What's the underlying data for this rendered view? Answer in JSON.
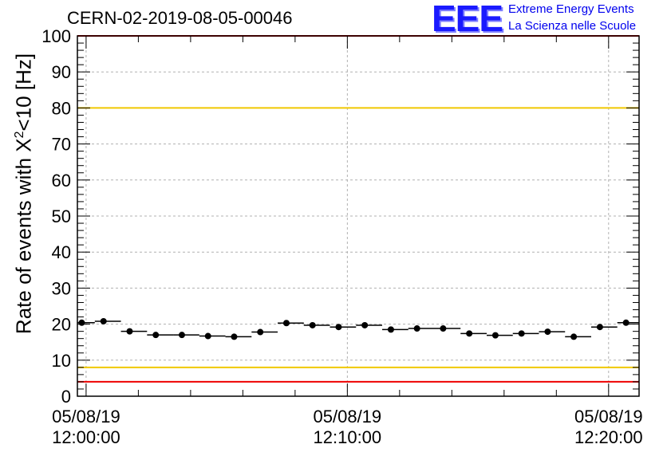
{
  "title": "CERN-02-2019-08-05-00046",
  "logo": {
    "mark": "EEE",
    "line1": "Extreme Energy Events",
    "line2": "La Scienza nelle Scuole"
  },
  "chart_data": {
    "type": "scatter",
    "ylabel": "Rate of events with X²<10 [Hz]",
    "ylabel_main": "Rate of events with X",
    "ylabel_sup": "2",
    "ylabel_tail": "<10 [Hz]",
    "ylim": [
      0,
      100
    ],
    "yticks": [
      0,
      10,
      20,
      30,
      40,
      50,
      60,
      70,
      80,
      90,
      100
    ],
    "xlim": [
      "2019-08-05 11:59:40",
      "2019-08-05 12:21:10"
    ],
    "xticks": [
      {
        "date": "05/08/19",
        "time": "12:00:00",
        "t": "2019-08-05 12:00:00"
      },
      {
        "date": "05/08/19",
        "time": "12:10:00",
        "t": "2019-08-05 12:10:00"
      },
      {
        "date": "05/08/19",
        "time": "12:20:00",
        "t": "2019-08-05 12:20:00"
      }
    ],
    "grid": true,
    "reference_lines": [
      {
        "y": 80,
        "color": "#f0c800"
      },
      {
        "y": 8,
        "color": "#f0c800"
      },
      {
        "y": 100,
        "color": "#ee0000"
      },
      {
        "y": 4,
        "color": "#ee0000"
      }
    ],
    "series": [
      {
        "x": [
          "11:59:50",
          "12:00:40",
          "12:01:40",
          "12:02:40",
          "12:03:40",
          "12:04:40",
          "12:05:40",
          "12:06:40",
          "12:07:40",
          "12:08:40",
          "12:09:40",
          "12:10:40",
          "12:11:40",
          "12:12:40",
          "12:13:40",
          "12:14:40",
          "12:15:40",
          "12:16:40",
          "12:17:40",
          "12:18:40",
          "12:19:40",
          "12:20:40"
        ],
        "x_start": [
          "11:59:40",
          "12:00:20",
          "12:01:20",
          "12:02:20",
          "12:03:20",
          "12:04:20",
          "12:05:20",
          "12:06:20",
          "12:07:20",
          "12:08:20",
          "12:09:20",
          "12:10:20",
          "12:11:20",
          "12:12:20",
          "12:13:20",
          "12:14:20",
          "12:15:20",
          "12:16:20",
          "12:17:20",
          "12:18:20",
          "12:19:20",
          "12:20:20"
        ],
        "x_end": [
          "12:00:20",
          "12:01:20",
          "12:02:20",
          "12:03:20",
          "12:04:20",
          "12:05:20",
          "12:06:20",
          "12:07:20",
          "12:08:20",
          "12:09:20",
          "12:10:20",
          "12:11:20",
          "12:12:20",
          "12:13:20",
          "12:14:20",
          "12:15:20",
          "12:16:20",
          "12:17:20",
          "12:18:20",
          "12:19:20",
          "12:20:20",
          "12:21:10"
        ],
        "y": [
          20.4,
          20.8,
          18.0,
          17.0,
          17.0,
          16.7,
          16.5,
          17.8,
          20.3,
          19.7,
          19.2,
          19.7,
          18.5,
          18.8,
          18.8,
          17.4,
          16.9,
          17.4,
          17.9,
          16.5,
          19.2,
          20.4
        ]
      }
    ]
  }
}
